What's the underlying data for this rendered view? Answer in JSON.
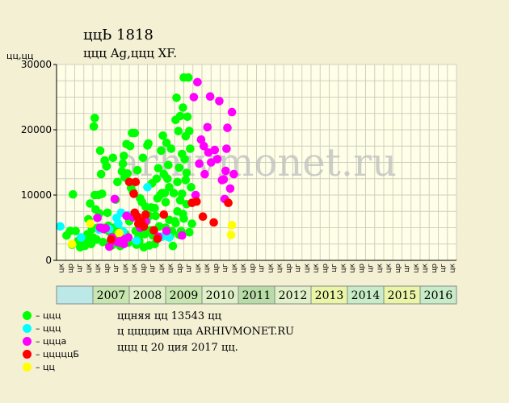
{
  "header": {
    "title": "ццЬ 1818",
    "subtitle": "ццц Ag,ццц XF."
  },
  "chart_data": {
    "type": "scatter",
    "y_unit_label": "цц,цц",
    "watermark": "arhivmonet.ru",
    "ylim": [
      0,
      30000
    ],
    "yticks": [
      0,
      10000,
      20000,
      30000
    ],
    "grid": true,
    "quarter_labels": [
      "цк",
      "цр",
      "цг",
      "цк",
      "цк",
      "цр",
      "цг",
      "цк",
      "цк",
      "цр",
      "цг",
      "цк",
      "цк",
      "цр",
      "цг",
      "цк",
      "цк",
      "цр",
      "цг",
      "цк",
      "цк",
      "цр",
      "цг",
      "цк",
      "цк",
      "цр",
      "цг",
      "цк",
      "цк",
      "цр",
      "цг",
      "цк",
      "цк",
      "цр",
      "цг",
      "цк",
      "цк",
      "цр",
      "цг",
      "цк",
      "цк",
      "цр",
      "цг",
      "цк"
    ],
    "years": [
      "2007",
      "2008",
      "2009",
      "2010",
      "2011",
      "2012",
      "2013",
      "2014",
      "2015",
      "2016"
    ],
    "year_colors": [
      "#c8e6b0",
      "#e0f0c8",
      "#c8e6b0",
      "#e0f0c8",
      "#b8dca8",
      "#e0f0c8",
      "#eaf5a8",
      "#c8ecc8",
      "#eaf5a8",
      "#c8ecc8"
    ],
    "series": [
      {
        "name": "ццц",
        "color": "#00ff00",
        "points": [
          [
            1.1,
            3800
          ],
          [
            1.5,
            4500
          ],
          [
            1.7,
            2400
          ],
          [
            1.8,
            10100
          ],
          [
            2.1,
            4500
          ],
          [
            2.4,
            3000
          ],
          [
            2.6,
            2000
          ],
          [
            2.8,
            3200
          ],
          [
            3.1,
            2200
          ],
          [
            3.3,
            2700
          ],
          [
            3.5,
            6300
          ],
          [
            3.6,
            3000
          ],
          [
            3.7,
            8700
          ],
          [
            3.8,
            2500
          ],
          [
            3.9,
            4800
          ],
          [
            4.0,
            3500
          ],
          [
            4.1,
            20500
          ],
          [
            4.2,
            21800
          ],
          [
            4.2,
            10000
          ],
          [
            4.4,
            3200
          ],
          [
            4.5,
            5000
          ],
          [
            4.6,
            10000
          ],
          [
            4.7,
            7200
          ],
          [
            4.8,
            16800
          ],
          [
            4.9,
            13200
          ],
          [
            5.0,
            10200
          ],
          [
            5.1,
            2800
          ],
          [
            5.2,
            5000
          ],
          [
            5.3,
            15300
          ],
          [
            5.5,
            14400
          ],
          [
            5.6,
            7300
          ],
          [
            5.7,
            5300
          ],
          [
            5.8,
            4400
          ],
          [
            6.0,
            2700
          ],
          [
            6.1,
            2300
          ],
          [
            6.2,
            15700
          ],
          [
            6.3,
            5000
          ],
          [
            6.4,
            3800
          ],
          [
            6.5,
            9300
          ],
          [
            6.6,
            4800
          ],
          [
            6.7,
            12000
          ],
          [
            6.8,
            2800
          ],
          [
            6.9,
            3100
          ],
          [
            7.0,
            2200
          ],
          [
            7.1,
            3600
          ],
          [
            7.2,
            13600
          ],
          [
            7.3,
            14800
          ],
          [
            7.4,
            16000
          ],
          [
            7.5,
            12700
          ],
          [
            7.6,
            4000
          ],
          [
            7.7,
            17800
          ],
          [
            7.8,
            13300
          ],
          [
            7.9,
            2700
          ],
          [
            8.0,
            6000
          ],
          [
            8.1,
            17500
          ],
          [
            8.2,
            11100
          ],
          [
            8.3,
            19500
          ],
          [
            8.4,
            10500
          ],
          [
            8.6,
            19500
          ],
          [
            8.7,
            4500
          ],
          [
            8.8,
            2400
          ],
          [
            8.9,
            13800
          ],
          [
            9.0,
            3500
          ],
          [
            9.1,
            3000
          ],
          [
            9.2,
            5100
          ],
          [
            9.3,
            4000
          ],
          [
            9.4,
            8900
          ],
          [
            9.5,
            15700
          ],
          [
            9.6,
            2000
          ],
          [
            9.8,
            8200
          ],
          [
            9.9,
            6000
          ],
          [
            10.0,
            17600
          ],
          [
            10.1,
            17900
          ],
          [
            10.2,
            2300
          ],
          [
            10.3,
            4600
          ],
          [
            10.4,
            8100
          ],
          [
            10.5,
            11800
          ],
          [
            10.6,
            3800
          ],
          [
            10.7,
            4400
          ],
          [
            10.8,
            2500
          ],
          [
            10.9,
            6800
          ],
          [
            11.0,
            12500
          ],
          [
            11.1,
            9500
          ],
          [
            11.2,
            14100
          ],
          [
            11.3,
            5200
          ],
          [
            11.4,
            10000
          ],
          [
            11.5,
            16800
          ],
          [
            11.6,
            10300
          ],
          [
            11.7,
            19100
          ],
          [
            11.8,
            13200
          ],
          [
            11.9,
            10300
          ],
          [
            12.0,
            5000
          ],
          [
            12.1,
            18000
          ],
          [
            12.2,
            12500
          ],
          [
            12.3,
            14600
          ],
          [
            12.4,
            6200
          ],
          [
            12.5,
            3800
          ],
          [
            12.6,
            17100
          ],
          [
            12.7,
            4500
          ],
          [
            12.8,
            2200
          ],
          [
            12.9,
            10300
          ],
          [
            13.0,
            6000
          ],
          [
            13.1,
            21500
          ],
          [
            13.2,
            24900
          ],
          [
            13.3,
            7500
          ],
          [
            13.4,
            19800
          ],
          [
            13.5,
            14200
          ],
          [
            13.6,
            22100
          ],
          [
            13.7,
            4500
          ],
          [
            13.8,
            10200
          ],
          [
            13.9,
            23400
          ],
          [
            14.0,
            28000
          ],
          [
            14.1,
            15500
          ],
          [
            14.2,
            12300
          ],
          [
            14.3,
            8600
          ],
          [
            14.4,
            22000
          ],
          [
            14.5,
            28000
          ],
          [
            14.6,
            19800
          ],
          [
            14.7,
            17100
          ],
          [
            14.8,
            11200
          ],
          [
            14.9,
            5600
          ],
          [
            13.3,
            12000
          ],
          [
            13.6,
            9200
          ],
          [
            13.8,
            16300
          ],
          [
            14.0,
            6400
          ],
          [
            14.2,
            19000
          ],
          [
            13.1,
            5700
          ],
          [
            13.5,
            3900
          ],
          [
            13.9,
            7100
          ],
          [
            14.3,
            13400
          ],
          [
            14.6,
            4300
          ],
          [
            12.0,
            8900
          ],
          [
            12.4,
            11200
          ],
          [
            11.5,
            3600
          ],
          [
            10.8,
            8000
          ],
          [
            10.2,
            6800
          ],
          [
            9.7,
            4000
          ],
          [
            9.2,
            9500
          ],
          [
            8.5,
            6800
          ],
          [
            6.9,
            4600
          ],
          [
            5.4,
            4700
          ],
          [
            4.3,
            7800
          ],
          [
            3.4,
            4000
          ]
        ]
      },
      {
        "name": "ццц",
        "color": "#00ffff",
        "points": [
          [
            0.4,
            5200
          ],
          [
            2.7,
            3500
          ],
          [
            4.7,
            4700
          ],
          [
            5.8,
            4800
          ],
          [
            6.6,
            6500
          ],
          [
            6.8,
            5600
          ],
          [
            7.1,
            7300
          ],
          [
            7.3,
            4500
          ],
          [
            7.9,
            6900
          ],
          [
            8.8,
            3000
          ],
          [
            10.0,
            11200
          ],
          [
            11.6,
            3600
          ],
          [
            12.4,
            3500
          ]
        ]
      },
      {
        "name": "цццa",
        "color": "#ff00ff",
        "points": [
          [
            4.5,
            6500
          ],
          [
            4.8,
            5000
          ],
          [
            5.2,
            4800
          ],
          [
            5.4,
            4900
          ],
          [
            5.8,
            2100
          ],
          [
            6.1,
            3500
          ],
          [
            6.3,
            3000
          ],
          [
            6.4,
            9400
          ],
          [
            6.7,
            2800
          ],
          [
            7.0,
            2700
          ],
          [
            7.2,
            3300
          ],
          [
            7.4,
            2500
          ],
          [
            7.7,
            6800
          ],
          [
            7.9,
            3500
          ],
          [
            8.4,
            6600
          ],
          [
            9.2,
            5000
          ],
          [
            9.8,
            6000
          ],
          [
            11.2,
            3600
          ],
          [
            12.1,
            4500
          ],
          [
            13.8,
            3800
          ],
          [
            15.1,
            25000
          ],
          [
            15.5,
            27300
          ],
          [
            15.7,
            14800
          ],
          [
            15.9,
            18500
          ],
          [
            15.3,
            10000
          ],
          [
            16.2,
            17500
          ],
          [
            16.6,
            20400
          ],
          [
            16.7,
            16500
          ],
          [
            16.9,
            25100
          ],
          [
            16.3,
            13200
          ],
          [
            17.0,
            15000
          ],
          [
            17.4,
            16900
          ],
          [
            17.7,
            15500
          ],
          [
            17.9,
            24400
          ],
          [
            18.2,
            12300
          ],
          [
            18.4,
            12400
          ],
          [
            18.6,
            13700
          ],
          [
            18.8,
            20300
          ],
          [
            18.7,
            17100
          ],
          [
            19.1,
            11000
          ],
          [
            19.3,
            22700
          ],
          [
            19.5,
            13200
          ],
          [
            18.5,
            9400
          ]
        ]
      },
      {
        "name": "цццццБ",
        "color": "#ff0000",
        "points": [
          [
            6.0,
            3200
          ],
          [
            8.0,
            12000
          ],
          [
            8.5,
            10200
          ],
          [
            8.6,
            7300
          ],
          [
            8.7,
            12000
          ],
          [
            8.9,
            6700
          ],
          [
            9.0,
            5600
          ],
          [
            9.1,
            5800
          ],
          [
            9.3,
            6000
          ],
          [
            9.6,
            5200
          ],
          [
            9.8,
            7000
          ],
          [
            10.7,
            4600
          ],
          [
            11.1,
            3300
          ],
          [
            11.8,
            7000
          ],
          [
            14.9,
            8800
          ],
          [
            15.4,
            9000
          ],
          [
            16.1,
            6700
          ],
          [
            17.3,
            5800
          ],
          [
            18.9,
            8800
          ]
        ]
      },
      {
        "name": "цц",
        "color": "#ffff00",
        "points": [
          [
            1.7,
            2500
          ],
          [
            3.7,
            5600
          ],
          [
            6.9,
            4200
          ],
          [
            19.3,
            5400
          ],
          [
            19.2,
            3900
          ]
        ]
      }
    ]
  },
  "legend": [
    {
      "label": "– ццц",
      "color": "#00ff00"
    },
    {
      "label": "– ццц",
      "color": "#00ffff"
    },
    {
      "label": "– цццa",
      "color": "#ff00ff"
    },
    {
      "label": "– цццццБ",
      "color": "#ff0000"
    },
    {
      "label": "– цц",
      "color": "#ffff00"
    }
  ],
  "info": {
    "line1": "ццняя цц 13543 цц",
    "line2": "ц ццццим цца ARHIVMONET.RU",
    "line3": "ццц ц 20 ция 2017 цц."
  }
}
